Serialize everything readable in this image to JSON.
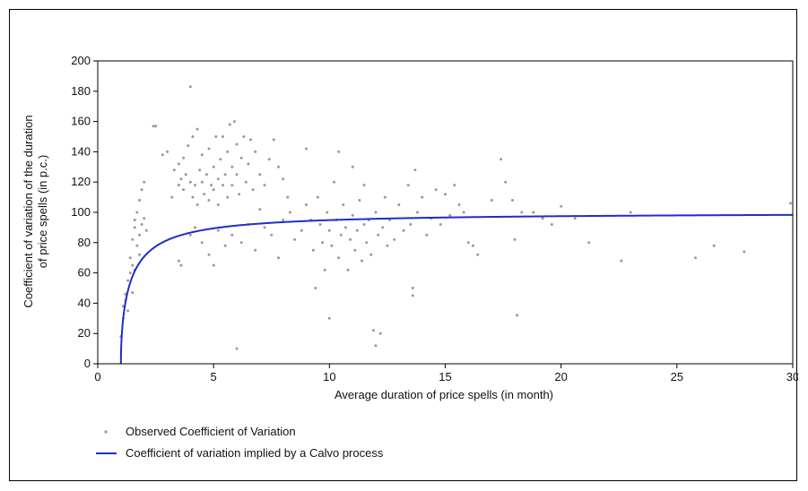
{
  "chart_data": {
    "type": "scatter",
    "xlabel": "Average duration of price spells (in month)",
    "ylabel_lines": [
      "Coefficient of variation of the duration",
      "of price spells (in p.c.)"
    ],
    "xlim": [
      0,
      30
    ],
    "ylim": [
      0,
      200
    ],
    "x_ticks": [
      "0",
      "5",
      "10",
      "15",
      "20",
      "25",
      "30"
    ],
    "y_ticks": [
      "0",
      "20",
      "40",
      "60",
      "80",
      "100",
      "120",
      "140",
      "160",
      "180",
      "200"
    ],
    "grid": false,
    "legend_position": "bottom-left",
    "colors": {
      "points": "#999999",
      "curve": "#1a2fc8"
    },
    "series": [
      {
        "name": "Observed Coefficient of Variation",
        "kind": "scatter",
        "points": [
          [
            1.0,
            18
          ],
          [
            1.1,
            30
          ],
          [
            1.1,
            38
          ],
          [
            1.2,
            42
          ],
          [
            1.2,
            46
          ],
          [
            1.3,
            35
          ],
          [
            1.3,
            55
          ],
          [
            1.4,
            60
          ],
          [
            1.4,
            70
          ],
          [
            1.5,
            65
          ],
          [
            1.5,
            82
          ],
          [
            1.6,
            90
          ],
          [
            1.6,
            95
          ],
          [
            1.7,
            78
          ],
          [
            1.7,
            100
          ],
          [
            1.8,
            85
          ],
          [
            1.8,
            108
          ],
          [
            1.9,
            92
          ],
          [
            1.9,
            115
          ],
          [
            2.0,
            96
          ],
          [
            2.0,
            120
          ],
          [
            2.1,
            88
          ],
          [
            1.5,
            47
          ],
          [
            1.6,
            62
          ],
          [
            1.8,
            72
          ],
          [
            2.5,
            157
          ],
          [
            2.4,
            157
          ],
          [
            2.8,
            138
          ],
          [
            3.0,
            140
          ],
          [
            3.2,
            110
          ],
          [
            3.3,
            128
          ],
          [
            3.5,
            132
          ],
          [
            3.5,
            118
          ],
          [
            3.6,
            122
          ],
          [
            3.7,
            115
          ],
          [
            3.7,
            136
          ],
          [
            3.8,
            125
          ],
          [
            3.9,
            144
          ],
          [
            4.0,
            183
          ],
          [
            4.0,
            120
          ],
          [
            4.1,
            110
          ],
          [
            4.1,
            150
          ],
          [
            4.2,
            118
          ],
          [
            4.3,
            105
          ],
          [
            4.3,
            155
          ],
          [
            4.4,
            128
          ],
          [
            4.5,
            120
          ],
          [
            4.5,
            138
          ],
          [
            4.6,
            112
          ],
          [
            4.7,
            125
          ],
          [
            4.8,
            108
          ],
          [
            4.8,
            142
          ],
          [
            4.9,
            118
          ],
          [
            5.0,
            130
          ],
          [
            5.0,
            115
          ],
          [
            5.1,
            150
          ],
          [
            5.2,
            122
          ],
          [
            5.2,
            105
          ],
          [
            5.3,
            135
          ],
          [
            5.4,
            118
          ],
          [
            5.4,
            150
          ],
          [
            5.5,
            125
          ],
          [
            5.6,
            140
          ],
          [
            5.6,
            110
          ],
          [
            5.7,
            158
          ],
          [
            5.8,
            130
          ],
          [
            5.8,
            118
          ],
          [
            5.9,
            160
          ],
          [
            6.0,
            145
          ],
          [
            6.0,
            125
          ],
          [
            6.1,
            112
          ],
          [
            6.2,
            136
          ],
          [
            6.3,
            150
          ],
          [
            6.4,
            120
          ],
          [
            6.5,
            132
          ],
          [
            6.6,
            148
          ],
          [
            6.7,
            115
          ],
          [
            6.8,
            140
          ],
          [
            7.0,
            125
          ],
          [
            7.2,
            118
          ],
          [
            7.4,
            135
          ],
          [
            7.6,
            148
          ],
          [
            7.8,
            130
          ],
          [
            8.0,
            122
          ],
          [
            8.2,
            110
          ],
          [
            3.5,
            68
          ],
          [
            3.6,
            65
          ],
          [
            4.0,
            85
          ],
          [
            4.2,
            90
          ],
          [
            4.5,
            80
          ],
          [
            4.8,
            72
          ],
          [
            5.0,
            65
          ],
          [
            5.2,
            88
          ],
          [
            5.5,
            78
          ],
          [
            5.8,
            85
          ],
          [
            6.0,
            10
          ],
          [
            6.2,
            80
          ],
          [
            6.5,
            92
          ],
          [
            6.8,
            75
          ],
          [
            7.0,
            102
          ],
          [
            7.2,
            90
          ],
          [
            7.5,
            85
          ],
          [
            7.8,
            70
          ],
          [
            8.0,
            95
          ],
          [
            8.3,
            100
          ],
          [
            8.5,
            82
          ],
          [
            8.8,
            88
          ],
          [
            9.0,
            142
          ],
          [
            9.0,
            105
          ],
          [
            9.2,
            95
          ],
          [
            9.3,
            75
          ],
          [
            9.4,
            50
          ],
          [
            9.5,
            110
          ],
          [
            9.6,
            92
          ],
          [
            9.7,
            80
          ],
          [
            9.8,
            62
          ],
          [
            9.9,
            100
          ],
          [
            10.0,
            30
          ],
          [
            10.0,
            88
          ],
          [
            10.1,
            78
          ],
          [
            10.2,
            120
          ],
          [
            10.3,
            95
          ],
          [
            10.4,
            140
          ],
          [
            10.4,
            70
          ],
          [
            10.5,
            85
          ],
          [
            10.6,
            105
          ],
          [
            10.7,
            90
          ],
          [
            10.8,
            62
          ],
          [
            10.9,
            82
          ],
          [
            11.0,
            98
          ],
          [
            11.0,
            130
          ],
          [
            11.1,
            75
          ],
          [
            11.2,
            88
          ],
          [
            11.3,
            108
          ],
          [
            11.4,
            68
          ],
          [
            11.5,
            92
          ],
          [
            11.5,
            118
          ],
          [
            11.6,
            80
          ],
          [
            11.7,
            95
          ],
          [
            11.8,
            72
          ],
          [
            11.9,
            22
          ],
          [
            12.0,
            12
          ],
          [
            12.0,
            100
          ],
          [
            12.1,
            85
          ],
          [
            12.2,
            20
          ],
          [
            12.3,
            90
          ],
          [
            12.4,
            110
          ],
          [
            12.5,
            78
          ],
          [
            12.6,
            95
          ],
          [
            12.8,
            82
          ],
          [
            13.0,
            105
          ],
          [
            13.2,
            88
          ],
          [
            13.4,
            118
          ],
          [
            13.5,
            92
          ],
          [
            13.6,
            45
          ],
          [
            13.6,
            50
          ],
          [
            13.7,
            128
          ],
          [
            13.8,
            100
          ],
          [
            14.0,
            110
          ],
          [
            14.2,
            85
          ],
          [
            14.4,
            96
          ],
          [
            14.6,
            115
          ],
          [
            14.8,
            92
          ],
          [
            15.0,
            112
          ],
          [
            15.2,
            98
          ],
          [
            15.4,
            118
          ],
          [
            15.6,
            105
          ],
          [
            15.8,
            100
          ],
          [
            16.0,
            80
          ],
          [
            16.2,
            78
          ],
          [
            16.4,
            72
          ],
          [
            17.0,
            108
          ],
          [
            17.4,
            135
          ],
          [
            17.6,
            120
          ],
          [
            17.9,
            108
          ],
          [
            18.0,
            82
          ],
          [
            18.1,
            32
          ],
          [
            18.3,
            100
          ],
          [
            18.8,
            100
          ],
          [
            19.2,
            96
          ],
          [
            19.6,
            92
          ],
          [
            20.0,
            104
          ],
          [
            20.6,
            96
          ],
          [
            21.2,
            80
          ],
          [
            22.6,
            68
          ],
          [
            23.0,
            100
          ],
          [
            25.8,
            70
          ],
          [
            26.6,
            78
          ],
          [
            27.9,
            74
          ],
          [
            29.9,
            106
          ]
        ]
      },
      {
        "name": "Coefficient of variation implied by a Calvo process",
        "kind": "line",
        "formula": "100*sqrt(1-1/x)",
        "x_range": [
          1,
          30
        ]
      }
    ]
  }
}
